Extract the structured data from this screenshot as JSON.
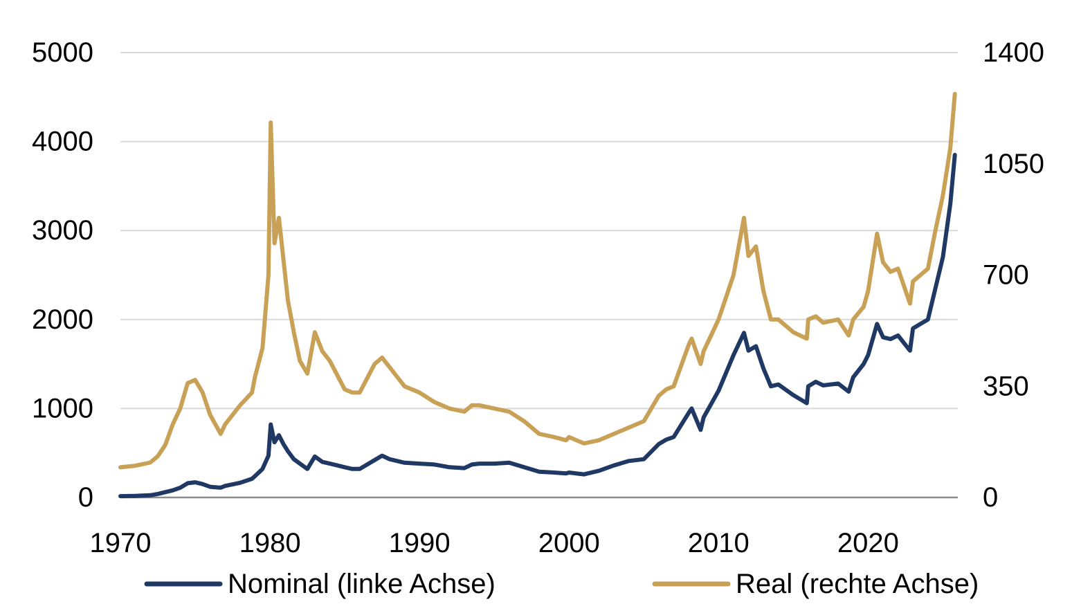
{
  "chart_data": {
    "type": "line",
    "title": "",
    "xlabel": "",
    "ylabel_left": "",
    "ylabel_right": "",
    "x_ticks": [
      1970,
      1980,
      1990,
      2000,
      2010,
      2020
    ],
    "x_tick_labels": [
      "1970",
      "1980",
      "1990",
      "2000",
      "2010",
      "2020"
    ],
    "xlim": [
      1970,
      2026
    ],
    "ylim_left": [
      0,
      5000
    ],
    "y_ticks_left": [
      0,
      1000,
      2000,
      3000,
      4000,
      5000
    ],
    "y_tick_labels_left": [
      "0",
      "1000",
      "2000",
      "3000",
      "4000",
      "5000"
    ],
    "ylim_right": [
      0,
      1400
    ],
    "y_ticks_right": [
      0,
      350,
      700,
      1050,
      1400
    ],
    "y_tick_labels_right": [
      "0",
      "350",
      "700",
      "1050",
      "1400"
    ],
    "grid": true,
    "legend_position": "bottom",
    "series": [
      {
        "name": "Nominal (linke Achse)",
        "axis": "left",
        "color": "#1f3864",
        "x": [
          1970,
          1971,
          1972,
          1972.5,
          1973,
          1973.5,
          1974,
          1974.5,
          1975,
          1975.5,
          1976,
          1976.7,
          1977,
          1978,
          1978.8,
          1979,
          1979.5,
          1979.9,
          1980.05,
          1980.3,
          1980.6,
          1980.9,
          1981.2,
          1981.6,
          1982,
          1982.5,
          1983,
          1983.5,
          1984,
          1985,
          1985.5,
          1986,
          1987,
          1987.5,
          1988,
          1989,
          1990,
          1991,
          1992,
          1993,
          1993.5,
          1994,
          1995,
          1996,
          1997,
          1998,
          1999,
          1999.8,
          2000,
          2001,
          2002,
          2003,
          2004,
          2005,
          2006,
          2006.5,
          2007,
          2008,
          2008.2,
          2008.8,
          2009,
          2010,
          2011,
          2011.7,
          2012,
          2012.5,
          2013,
          2013.5,
          2014,
          2015,
          2015.9,
          2016,
          2016.5,
          2017,
          2018,
          2018.7,
          2019,
          2019.7,
          2020,
          2020.6,
          2021,
          2021.5,
          2022,
          2022.8,
          2023,
          2023.5,
          2024,
          2024.5,
          2025,
          2025.5,
          2025.8
        ],
        "values": [
          15,
          18,
          25,
          40,
          60,
          80,
          110,
          160,
          170,
          150,
          120,
          110,
          130,
          165,
          210,
          240,
          320,
          470,
          820,
          620,
          700,
          600,
          520,
          430,
          380,
          320,
          460,
          400,
          380,
          340,
          320,
          320,
          420,
          470,
          430,
          390,
          380,
          370,
          340,
          330,
          370,
          380,
          380,
          390,
          340,
          290,
          280,
          270,
          280,
          260,
          300,
          360,
          410,
          430,
          600,
          650,
          680,
          950,
          1000,
          760,
          900,
          1200,
          1600,
          1850,
          1650,
          1700,
          1450,
          1250,
          1270,
          1150,
          1060,
          1250,
          1300,
          1260,
          1280,
          1190,
          1350,
          1500,
          1600,
          1950,
          1800,
          1780,
          1820,
          1650,
          1900,
          1950,
          2000,
          2350,
          2700,
          3300,
          3850
        ]
      },
      {
        "name": "Real (rechte Achse)",
        "axis": "right",
        "color": "#c9a156",
        "x": [
          1970,
          1971,
          1972,
          1972.5,
          1973,
          1973.5,
          1974,
          1974.5,
          1975,
          1975.5,
          1976,
          1976.7,
          1977,
          1978,
          1978.8,
          1979,
          1979.5,
          1979.9,
          1980.05,
          1980.3,
          1980.6,
          1980.9,
          1981.2,
          1981.6,
          1982,
          1982.5,
          1983,
          1983.5,
          1984,
          1985,
          1985.5,
          1986,
          1987,
          1987.5,
          1988,
          1989,
          1990,
          1991,
          1992,
          1993,
          1993.5,
          1994,
          1995,
          1996,
          1997,
          1998,
          1999,
          1999.8,
          2000,
          2001,
          2002,
          2003,
          2004,
          2005,
          2006,
          2006.5,
          2007,
          2008,
          2008.2,
          2008.8,
          2009,
          2010,
          2011,
          2011.7,
          2012,
          2012.5,
          2013,
          2013.5,
          2014,
          2015,
          2015.9,
          2016,
          2016.5,
          2017,
          2018,
          2018.7,
          2019,
          2019.7,
          2020,
          2020.6,
          2021,
          2021.5,
          2022,
          2022.8,
          2023,
          2023.5,
          2024,
          2024.5,
          2025,
          2025.5,
          2025.8
        ],
        "values": [
          95,
          100,
          110,
          130,
          165,
          230,
          280,
          360,
          370,
          330,
          260,
          200,
          230,
          290,
          330,
          380,
          470,
          700,
          1180,
          800,
          880,
          750,
          620,
          520,
          430,
          390,
          520,
          460,
          430,
          340,
          330,
          330,
          420,
          440,
          410,
          350,
          330,
          300,
          280,
          270,
          290,
          290,
          280,
          270,
          240,
          200,
          190,
          180,
          190,
          170,
          180,
          200,
          220,
          240,
          320,
          340,
          350,
          480,
          500,
          420,
          460,
          560,
          700,
          880,
          760,
          790,
          650,
          560,
          560,
          520,
          500,
          560,
          570,
          550,
          560,
          510,
          560,
          600,
          650,
          830,
          740,
          710,
          720,
          610,
          680,
          700,
          720,
          840,
          950,
          1100,
          1270
        ]
      }
    ]
  }
}
